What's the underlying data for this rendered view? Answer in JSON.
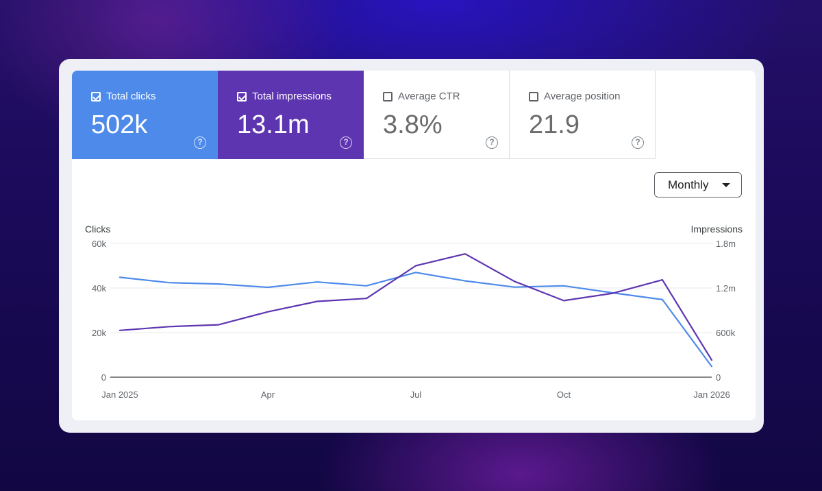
{
  "metrics": [
    {
      "label": "Total clicks",
      "value": "502k",
      "checked": true
    },
    {
      "label": "Total impressions",
      "value": "13.1m",
      "checked": true
    },
    {
      "label": "Average CTR",
      "value": "3.8%",
      "checked": false
    },
    {
      "label": "Average position",
      "value": "21.9",
      "checked": false
    }
  ],
  "help_glyph": "?",
  "period": {
    "selected": "Monthly"
  },
  "colors": {
    "clicks": "#4e8ae9",
    "impressions": "#5e35b1"
  },
  "chart_data": {
    "type": "line",
    "x": [
      "2025-01",
      "2025-02",
      "2025-03",
      "2025-04",
      "2025-05",
      "2025-06",
      "2025-07",
      "2025-08",
      "2025-09",
      "2025-10",
      "2025-11",
      "2025-12",
      "2026-01"
    ],
    "x_ticks": [
      "Jan 2025",
      "Apr",
      "Jul",
      "Oct",
      "Jan 2026"
    ],
    "ylabel": "Clicks",
    "y2label": "Impressions",
    "y_ticks": [
      "0",
      "20k",
      "40k",
      "60k"
    ],
    "y2_ticks": [
      "0",
      "600k",
      "1.2m",
      "1.8m"
    ],
    "ylim": [
      0,
      60000
    ],
    "y2lim": [
      0,
      1800000
    ],
    "grid": true,
    "series": [
      {
        "name": "Total clicks",
        "axis": "left",
        "color": "#4e8ae9",
        "values": [
          44800,
          42400,
          41800,
          40300,
          42700,
          41000,
          47000,
          43200,
          40400,
          41000,
          37800,
          34800,
          4800
        ]
      },
      {
        "name": "Total impressions",
        "axis": "right",
        "color": "#5e35b1",
        "values": [
          630000,
          680000,
          705000,
          880000,
          1020000,
          1060000,
          1500000,
          1660000,
          1290000,
          1030000,
          1130000,
          1310000,
          230000
        ]
      }
    ]
  }
}
